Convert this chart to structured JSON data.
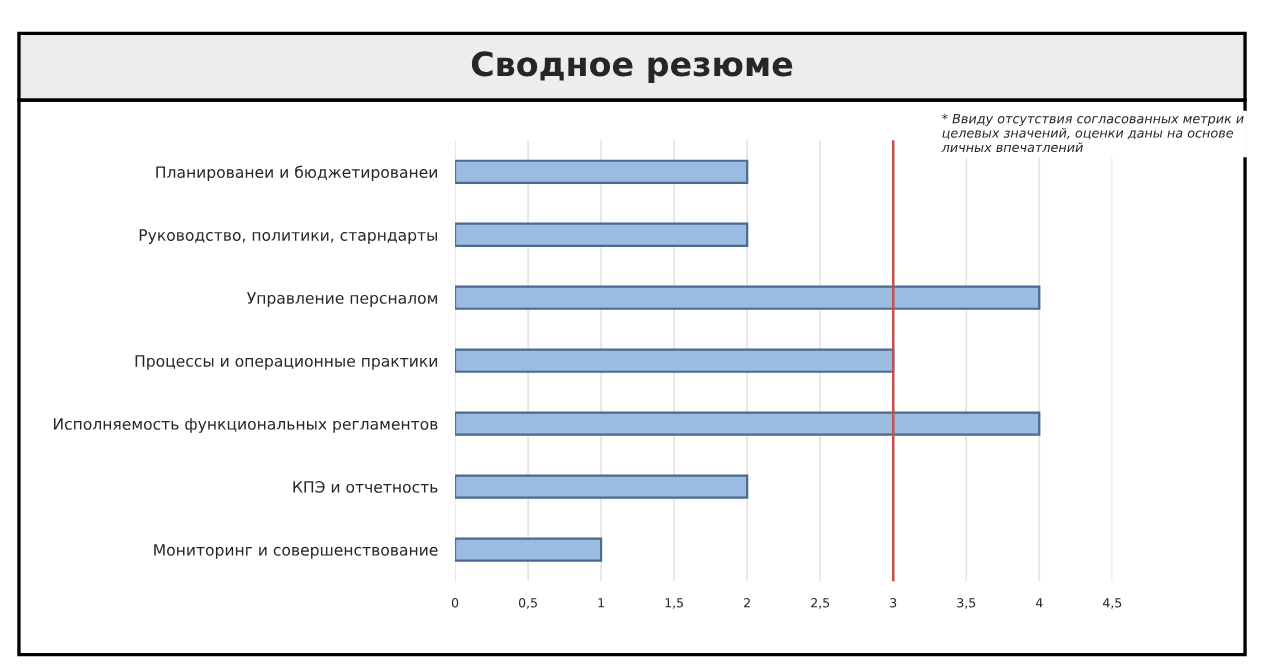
{
  "chart_data": {
    "type": "bar",
    "orientation": "horizontal",
    "title": "Сводное резюме",
    "categories": [
      "Планированеи и бюджетированеи",
      "Руководство, политики, старндарты",
      "Управление персналом",
      "Процессы и операционные практики",
      "Исполняемость функциональных регламентов",
      "КПЭ и отчетность",
      "Мониторинг и совершенствование"
    ],
    "values": [
      2,
      2,
      4,
      3,
      4,
      2,
      1
    ],
    "color": "#9bbbe0",
    "xlim": [
      0,
      4.5
    ],
    "xticks": [
      0,
      {
        "value": 0.5,
        "label": "0,5"
      },
      1,
      {
        "value": 1.5,
        "label": "1,5"
      },
      2,
      {
        "value": 2.5,
        "label": "2,5"
      },
      3,
      {
        "value": 3.5,
        "label": "3,5"
      },
      4,
      {
        "value": 4.5,
        "label": "4,5"
      }
    ],
    "grid": "x",
    "ref_lines": [
      {
        "axis": "x",
        "value": 3,
        "color": "#c0504d"
      }
    ],
    "annotations": [
      "* Ввиду отсутствия согласованных метрик и целевых значений, оценки даны на основе личных впечатлений"
    ]
  }
}
